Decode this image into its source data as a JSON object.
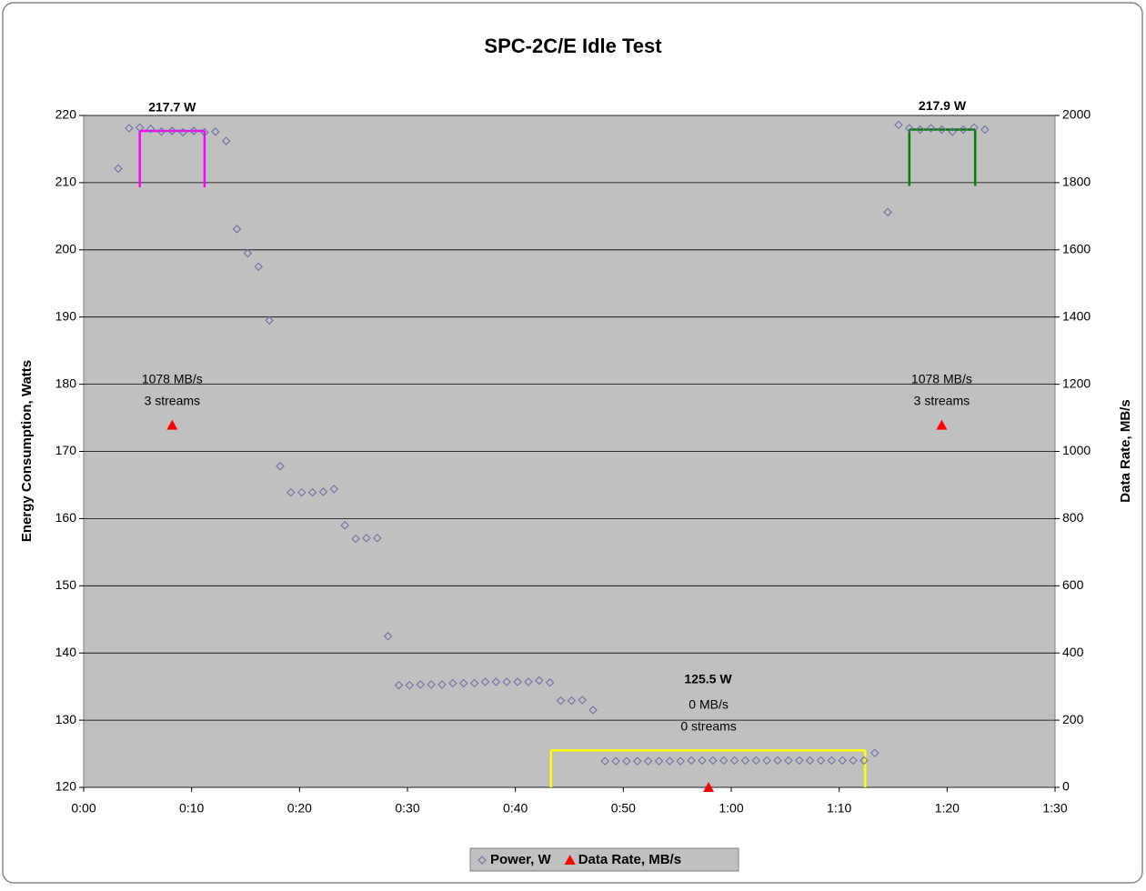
{
  "chart_data": {
    "type": "scatter",
    "title": "SPC-2C/E Idle Test",
    "ylabel": "Energy Consumption, Watts",
    "y2label": "Data Rate, MB/s",
    "xlim": [
      0,
      90
    ],
    "xticks": [
      {
        "value": 0,
        "label": "0:00"
      },
      {
        "value": 10,
        "label": "0:10"
      },
      {
        "value": 20,
        "label": "0:20"
      },
      {
        "value": 30,
        "label": "0:30"
      },
      {
        "value": 40,
        "label": "0:40"
      },
      {
        "value": 50,
        "label": "0:50"
      },
      {
        "value": 60,
        "label": "1:00"
      },
      {
        "value": 70,
        "label": "1:10"
      },
      {
        "value": 80,
        "label": "1:20"
      },
      {
        "value": 90,
        "label": "1:30"
      }
    ],
    "ylim": [
      120,
      220
    ],
    "yticks": [
      120,
      130,
      140,
      150,
      160,
      170,
      180,
      190,
      200,
      210,
      220
    ],
    "y2lim": [
      0,
      2000
    ],
    "y2ticks": [
      0,
      200,
      400,
      600,
      800,
      1000,
      1200,
      1400,
      1600,
      1800,
      2000
    ],
    "grid": true,
    "legend": "bottom",
    "series": [
      {
        "name": "Power, W",
        "color": "#6a6aa8",
        "marker": "diamond",
        "x": [
          3.2,
          4.2,
          5.2,
          6.2,
          7.2,
          8.2,
          9.2,
          10.2,
          11.2,
          12.2,
          13.2,
          14.2,
          15.2,
          16.2,
          17.2,
          18.2,
          19.2,
          20.2,
          21.2,
          22.2,
          23.2,
          24.2,
          25.2,
          26.2,
          27.2,
          28.2,
          29.2,
          30.2,
          31.2,
          32.2,
          33.2,
          34.2,
          35.2,
          36.2,
          37.2,
          38.2,
          39.2,
          40.2,
          41.2,
          42.2,
          43.2,
          44.2,
          45.2,
          46.2,
          47.2,
          48.3,
          49.3,
          50.3,
          51.3,
          52.3,
          53.3,
          54.3,
          55.3,
          56.3,
          57.3,
          58.3,
          59.3,
          60.3,
          61.3,
          62.3,
          63.3,
          64.3,
          65.3,
          66.3,
          67.3,
          68.3,
          69.3,
          70.3,
          71.3,
          72.3,
          73.3,
          74.5,
          75.5,
          76.5,
          77.5,
          78.5,
          79.5,
          80.5,
          81.5,
          82.5,
          83.5
        ],
        "values": [
          212.1,
          218.1,
          218.2,
          218.0,
          217.6,
          217.7,
          217.5,
          217.7,
          217.5,
          217.6,
          216.2,
          203.1,
          199.5,
          197.5,
          189.5,
          167.8,
          163.9,
          163.9,
          163.9,
          164.0,
          164.4,
          159.0,
          157.0,
          157.1,
          157.1,
          142.5,
          135.2,
          135.2,
          135.3,
          135.3,
          135.3,
          135.5,
          135.5,
          135.5,
          135.7,
          135.7,
          135.7,
          135.7,
          135.7,
          135.9,
          135.6,
          132.9,
          132.9,
          133.0,
          131.5,
          123.9,
          123.9,
          123.9,
          123.9,
          123.9,
          123.9,
          123.9,
          123.9,
          124.0,
          124.0,
          124.0,
          124.0,
          124.0,
          124.0,
          124.0,
          124.0,
          124.0,
          124.0,
          124.0,
          124.0,
          124.0,
          124.0,
          124.0,
          124.0,
          124.0,
          125.1,
          205.6,
          218.6,
          218.1,
          217.9,
          218.1,
          217.9,
          217.6,
          217.9,
          218.2,
          217.9
        ]
      },
      {
        "name": "Data Rate, MB/s",
        "color": "#ff0000",
        "marker": "triangle",
        "axis": "y2",
        "x": [
          8.2,
          57.9,
          79.5
        ],
        "values": [
          1078,
          0,
          1078
        ],
        "point_labels": [
          [
            "1078 MB/s",
            "3 streams"
          ],
          [
            "0 MB/s",
            "0 streams"
          ],
          [
            "1078 MB/s",
            "3 streams"
          ]
        ]
      }
    ],
    "brackets": [
      {
        "label": "217.7 W",
        "value": 217.7,
        "x": [
          5.2,
          11.2
        ],
        "color": "#ff00ff"
      },
      {
        "label": "125.5 W",
        "value": 125.5,
        "x": [
          43.3,
          72.4
        ],
        "color": "#ffff00"
      },
      {
        "label": "217.9 W",
        "value": 217.9,
        "x": [
          76.5,
          82.6
        ],
        "color": "#008000"
      }
    ]
  }
}
